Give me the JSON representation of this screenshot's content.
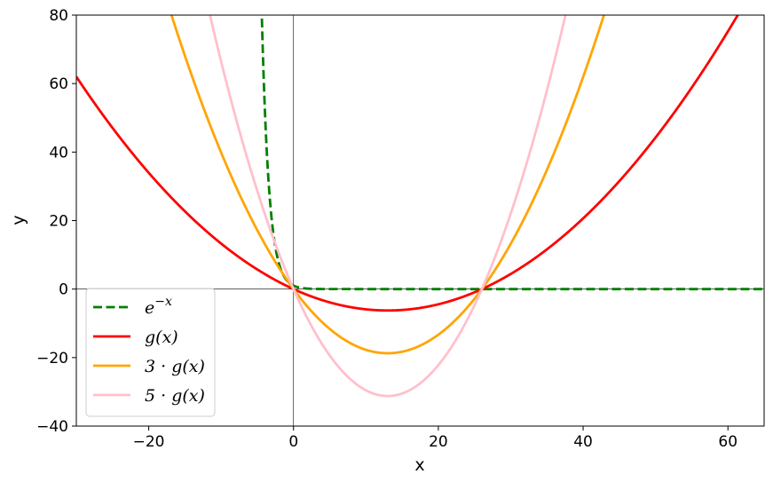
{
  "chart_data": {
    "type": "line",
    "xlabel": "x",
    "ylabel": "y",
    "xlim": [
      -30,
      65
    ],
    "ylim": [
      -40,
      80
    ],
    "xticks": [
      -20,
      0,
      20,
      40,
      60
    ],
    "yticks": [
      -40,
      -20,
      0,
      20,
      40,
      60,
      80
    ],
    "xtick_labels": [
      "−20",
      "0",
      "20",
      "40",
      "60"
    ],
    "ytick_labels": [
      "−40",
      "−20",
      "0",
      "20",
      "40",
      "60",
      "80"
    ],
    "grid": false,
    "reference_lines": {
      "x": 0,
      "y": 0
    },
    "legend_placement": "lower-left",
    "function": {
      "form": "quadratic",
      "a": 0.0369,
      "b": -0.96,
      "c": 0,
      "roots": [
        0,
        26
      ],
      "vertex": [
        13,
        -6.24
      ]
    },
    "series": [
      {
        "name": "e^{-x}",
        "legend_base": "e",
        "legend_sup": "−x",
        "kind": "exp_neg",
        "scale": 1,
        "color": "#008000",
        "dashed": true
      },
      {
        "name": "g(x)",
        "legend_text": "g(x)",
        "kind": "quadratic",
        "scale": 1,
        "color": "#ff0000",
        "dashed": false
      },
      {
        "name": "3·g(x)",
        "legend_text": "3 · g(x)",
        "kind": "quadratic",
        "scale": 3,
        "color": "#ffa500",
        "dashed": false
      },
      {
        "name": "5·g(x)",
        "legend_text": "5 · g(x)",
        "kind": "quadratic",
        "scale": 5,
        "color": "#ffc0cb",
        "dashed": false
      }
    ]
  }
}
